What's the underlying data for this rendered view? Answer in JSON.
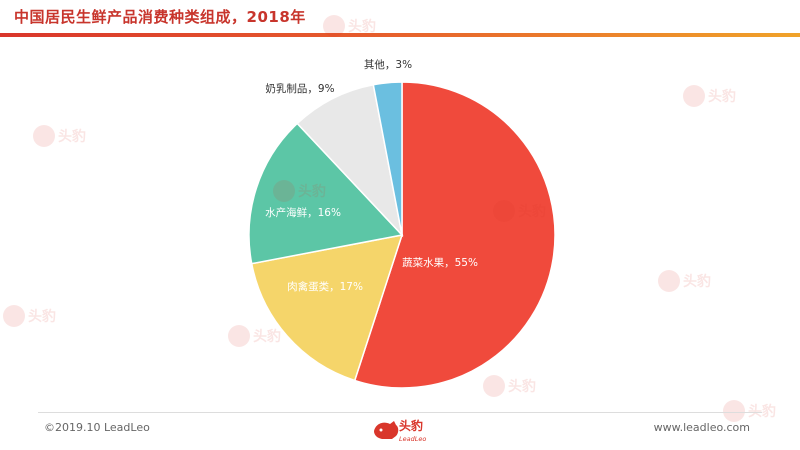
{
  "header": {
    "title": "中国居民生鲜产品消费种类组成，2018年"
  },
  "footer": {
    "copyright": "©2019.10 LeadLeo",
    "website": "www.leadleo.com",
    "logo_text": "头豹",
    "logo_subtext": "LeadLeo"
  },
  "chart_data": {
    "type": "pie",
    "title": "中国居民生鲜产品消费种类组成，2018年",
    "start_angle_deg": 0,
    "direction": "clockwise",
    "slices": [
      {
        "label": "蔬菜水果，55%",
        "name": "蔬菜水果",
        "value": 55,
        "color": "#f04a3c"
      },
      {
        "label": "肉禽蛋类，17%",
        "name": "肉禽蛋类",
        "value": 17,
        "color": "#f5d56a"
      },
      {
        "label": "水产海鲜，16%",
        "name": "水产海鲜",
        "value": 16,
        "color": "#5cc6a6"
      },
      {
        "label": "奶乳制品，9%",
        "name": "奶乳制品",
        "value": 9,
        "color": "#e8e8e8"
      },
      {
        "label": "其他，3%",
        "name": "其他",
        "value": 3,
        "color": "#6bbfe0"
      }
    ]
  }
}
